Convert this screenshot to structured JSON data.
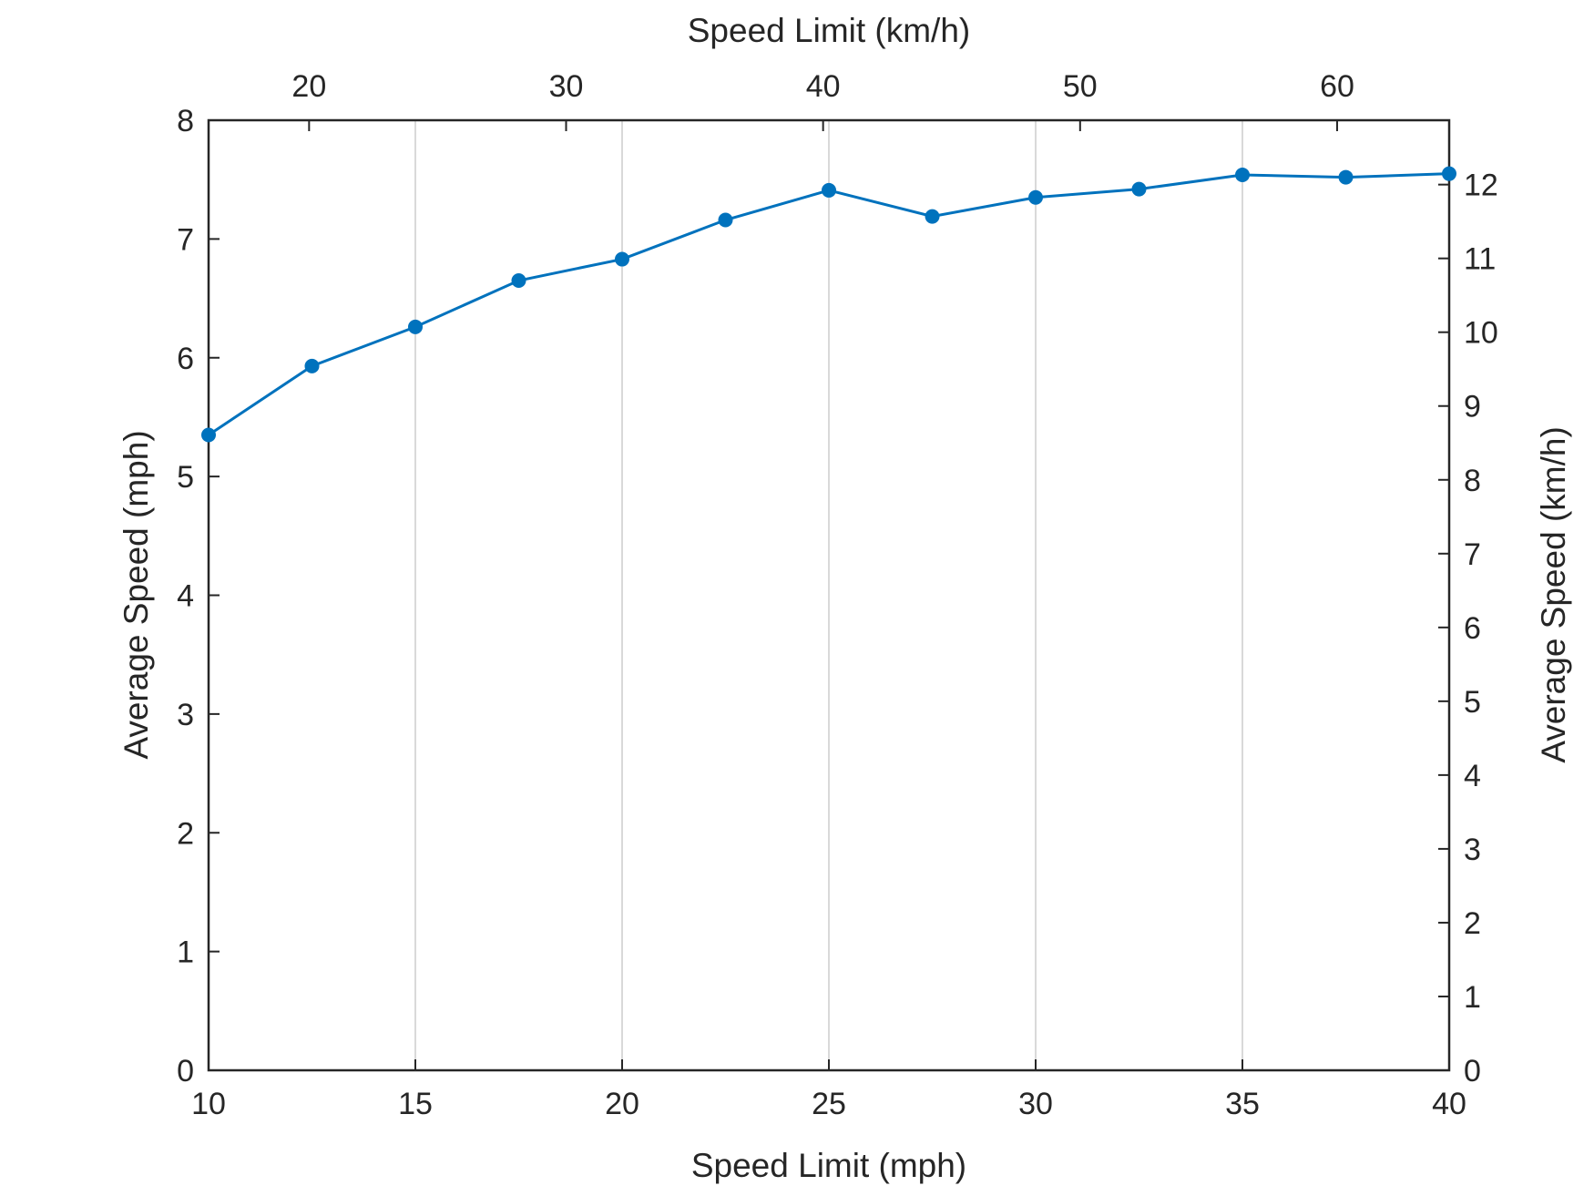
{
  "chart_data": {
    "type": "line",
    "x": [
      10,
      12.5,
      15,
      17.5,
      20,
      22.5,
      25,
      27.5,
      30,
      32.5,
      35,
      37.5,
      40
    ],
    "series": [
      {
        "values": [
          5.35,
          5.93,
          6.26,
          6.65,
          6.83,
          7.16,
          7.41,
          7.19,
          7.35,
          7.42,
          7.54,
          7.52,
          7.55
        ],
        "color": "#0072BD",
        "marker": "circle"
      }
    ],
    "xlabel": "Speed Limit (mph)",
    "ylabel": "Average Speed (mph)",
    "x2label": "Speed Limit (km/h)",
    "y2label": "Average Speed (km/h)",
    "xlim": [
      10,
      40
    ],
    "ylim": [
      0,
      8
    ],
    "xticks": [
      10,
      15,
      20,
      25,
      30,
      35,
      40
    ],
    "yticks": [
      0,
      1,
      2,
      3,
      4,
      5,
      6,
      7,
      8
    ],
    "x2ticks": [
      20,
      30,
      40,
      50,
      60
    ],
    "y2ticks": [
      0,
      1,
      2,
      3,
      4,
      5,
      6,
      7,
      8,
      9,
      10,
      11,
      12
    ],
    "x2_factor_kmh_per_mph": 1.609,
    "grid": "vertical",
    "grid_color": "#d9d9d9"
  }
}
